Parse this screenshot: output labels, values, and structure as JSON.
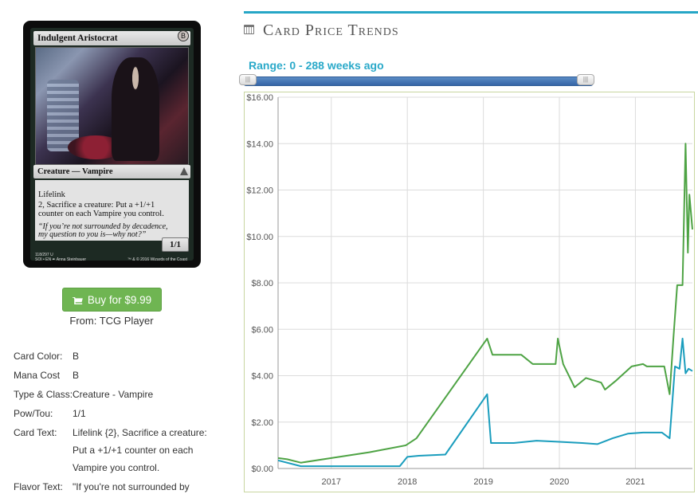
{
  "card": {
    "name": "Indulgent Aristocrat",
    "mana_symbol": "B",
    "type_line": "Creature — Vampire",
    "rules_line1": "Lifelink",
    "rules_line2a": "2, Sacrifice a creature: Put a +1/+1",
    "rules_line2b": "counter on each Vampire you control.",
    "flavor_a": "“If you’re not surrounded by decadence,",
    "flavor_b": "my question to you is—why not?”",
    "pt": "1/1",
    "collector_a": "118/297 U",
    "collector_b": "SOI • EN ✒ Anna Steinbauer",
    "copyright": "™ & © 2016 Wizards of the Coast"
  },
  "buy": {
    "label": "Buy for $9.99",
    "icon": "shopping-cart-icon",
    "source": "From: TCG Player",
    "color": "#6fb552"
  },
  "attributes": [
    {
      "label": "Card Color:",
      "value": "B"
    },
    {
      "label": "Mana Cost",
      "value": "B"
    },
    {
      "label": "Type & Class:",
      "value": "Creature - Vampire"
    },
    {
      "label": "Pow/Tou:",
      "value": "1/1"
    },
    {
      "label": "Card Text:",
      "value": "Lifelink {2}, Sacrifice a creature:"
    },
    {
      "label": "",
      "value": "Put a +1/+1 counter on each"
    },
    {
      "label": "",
      "value": "Vampire you control."
    },
    {
      "label": "Flavor Text:",
      "value": "\"If you're not surrounded by"
    }
  ],
  "section": {
    "title": "Card Price Trends",
    "icon": "calendar-icon",
    "accent": "#26a6c6"
  },
  "range": {
    "label": "Range: 0 - 288 weeks ago",
    "handle_glyph": "|||",
    "track_color": "#3a6aab"
  },
  "chart_data": {
    "type": "line",
    "ylim": [
      0,
      16
    ],
    "yticks": [
      "$0.00",
      "$2.00",
      "$4.00",
      "$6.00",
      "$8.00",
      "$10.00",
      "$12.00",
      "$14.00",
      "$16.00"
    ],
    "xlim": [
      2016.3,
      2021.75
    ],
    "xticks": [
      "2017",
      "2018",
      "2019",
      "2020",
      "2021"
    ],
    "grid": true,
    "series": [
      {
        "color": "#4ea344",
        "points": [
          [
            2016.3,
            0.45
          ],
          [
            2016.42,
            0.4
          ],
          [
            2016.6,
            0.25
          ],
          [
            2017.0,
            0.45
          ],
          [
            2017.5,
            0.7
          ],
          [
            2017.98,
            1.0
          ],
          [
            2018.12,
            1.3
          ],
          [
            2019.05,
            5.6
          ],
          [
            2019.12,
            4.9
          ],
          [
            2019.5,
            4.9
          ],
          [
            2019.65,
            4.5
          ],
          [
            2019.95,
            4.5
          ],
          [
            2019.98,
            5.6
          ],
          [
            2020.05,
            4.5
          ],
          [
            2020.2,
            3.5
          ],
          [
            2020.35,
            3.9
          ],
          [
            2020.55,
            3.7
          ],
          [
            2020.6,
            3.4
          ],
          [
            2020.75,
            3.8
          ],
          [
            2020.95,
            4.4
          ],
          [
            2021.1,
            4.5
          ],
          [
            2021.15,
            4.4
          ],
          [
            2021.38,
            4.4
          ],
          [
            2021.45,
            3.2
          ],
          [
            2021.5,
            5.6
          ],
          [
            2021.55,
            7.9
          ],
          [
            2021.62,
            7.9
          ],
          [
            2021.66,
            14.0
          ],
          [
            2021.69,
            9.3
          ],
          [
            2021.71,
            11.8
          ],
          [
            2021.75,
            10.3
          ]
        ]
      },
      {
        "color": "#1a9dbd",
        "points": [
          [
            2016.3,
            0.35
          ],
          [
            2016.6,
            0.1
          ],
          [
            2017.0,
            0.1
          ],
          [
            2017.4,
            0.1
          ],
          [
            2017.9,
            0.1
          ],
          [
            2018.0,
            0.5
          ],
          [
            2018.15,
            0.55
          ],
          [
            2018.5,
            0.6
          ],
          [
            2019.05,
            3.2
          ],
          [
            2019.1,
            1.1
          ],
          [
            2019.4,
            1.1
          ],
          [
            2019.7,
            1.2
          ],
          [
            2020.0,
            1.15
          ],
          [
            2020.3,
            1.1
          ],
          [
            2020.5,
            1.05
          ],
          [
            2020.7,
            1.3
          ],
          [
            2020.9,
            1.5
          ],
          [
            2021.1,
            1.55
          ],
          [
            2021.35,
            1.55
          ],
          [
            2021.45,
            1.3
          ],
          [
            2021.52,
            4.4
          ],
          [
            2021.58,
            4.3
          ],
          [
            2021.62,
            5.6
          ],
          [
            2021.66,
            4.1
          ],
          [
            2021.7,
            4.3
          ],
          [
            2021.75,
            4.2
          ]
        ]
      }
    ]
  }
}
